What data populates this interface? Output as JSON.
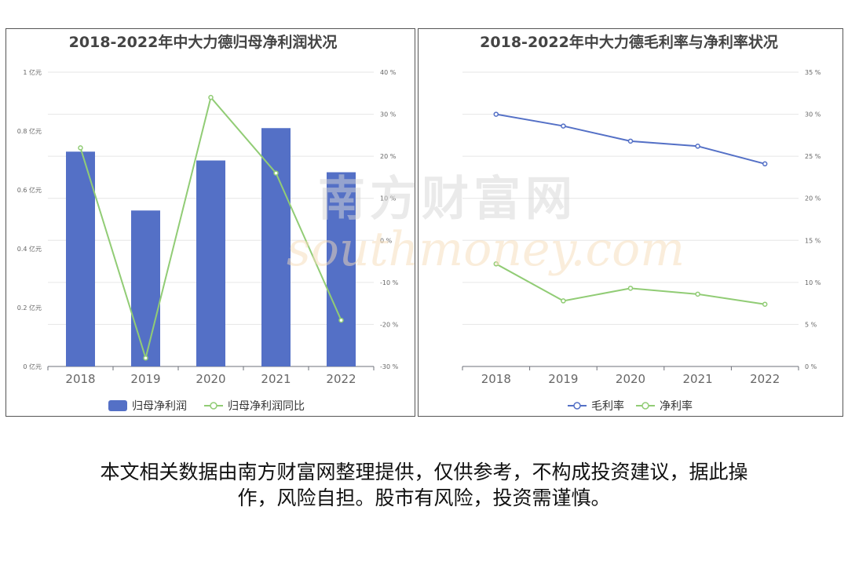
{
  "chart_data": [
    {
      "type": "bar",
      "title": "2018-2022年中大力德归母净利润状况",
      "categories": [
        "2018",
        "2019",
        "2020",
        "2021",
        "2022"
      ],
      "series": [
        {
          "name": "归母净利润",
          "type": "bar",
          "axis": "left",
          "values": [
            0.73,
            0.53,
            0.7,
            0.81,
            0.66
          ],
          "color": "#5470c6"
        },
        {
          "name": "归母净利润同比",
          "type": "line",
          "axis": "right",
          "values": [
            22,
            -28,
            34,
            16,
            -19
          ],
          "color": "#91cc75"
        }
      ],
      "y_left": {
        "ticks": [
          "0 亿元",
          "0.2 亿元",
          "0.4 亿元",
          "0.6 亿元",
          "0.8 亿元",
          "1 亿元"
        ],
        "range": [
          0,
          1
        ]
      },
      "y_right": {
        "ticks": [
          "-30 %",
          "-20 %",
          "-10 %",
          "0 %",
          "10 %",
          "20 %",
          "30 %",
          "40 %"
        ],
        "range": [
          -30,
          40
        ]
      },
      "grid": true,
      "legend": "bottom"
    },
    {
      "type": "line",
      "title": "2018-2022年中大力德毛利率与净利率状况",
      "categories": [
        "2018",
        "2019",
        "2020",
        "2021",
        "2022"
      ],
      "series": [
        {
          "name": "毛利率",
          "values": [
            30.0,
            28.6,
            26.8,
            26.2,
            24.1
          ],
          "color": "#5470c6"
        },
        {
          "name": "净利率",
          "values": [
            12.2,
            7.8,
            9.3,
            8.6,
            7.4
          ],
          "color": "#91cc75"
        }
      ],
      "y_right": {
        "ticks": [
          "0 %",
          "5 %",
          "10 %",
          "15 %",
          "20 %",
          "25 %",
          "30 %",
          "35 %"
        ],
        "range": [
          0,
          35
        ]
      },
      "grid": true,
      "legend": "bottom"
    }
  ],
  "watermark": {
    "cn": "南方财富网",
    "en": "southmoney.com"
  },
  "footer": {
    "line1": "本文相关数据由南方财富网整理提供，仅供参考，不构成投资建议，据此操",
    "line2": "作，风险自担。股市有风险，投资需谨慎。"
  }
}
